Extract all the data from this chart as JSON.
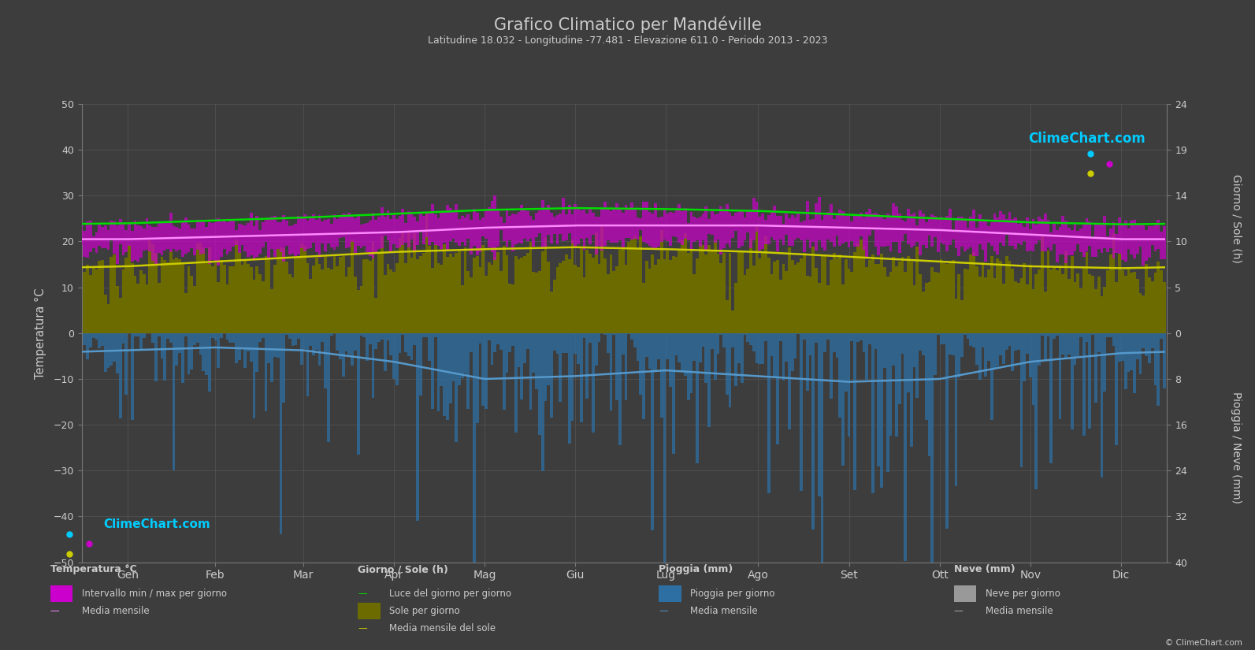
{
  "title": "Grafico Climatico per Mandéville",
  "subtitle": "Latitudine 18.032 - Longitudine -77.481 - Elevazione 611.0 - Periodo 2013 - 2023",
  "background_color": "#3d3d3d",
  "plot_bg_color": "#3d3d3d",
  "grid_color": "#5a5a5a",
  "text_color": "#cccccc",
  "months": [
    "Gen",
    "Feb",
    "Mar",
    "Apr",
    "Mag",
    "Giu",
    "Lug",
    "Ago",
    "Set",
    "Ott",
    "Nov",
    "Dic"
  ],
  "days_in_month": [
    31,
    28,
    31,
    30,
    31,
    30,
    31,
    31,
    30,
    31,
    30,
    31
  ],
  "temp_ylim": [
    -50,
    50
  ],
  "giorno_ylim": [
    0,
    24
  ],
  "pioggia_ylim": [
    0,
    40
  ],
  "temp_mean": [
    20.5,
    21.0,
    21.5,
    22.0,
    23.0,
    23.5,
    23.5,
    23.5,
    23.0,
    22.5,
    21.5,
    20.5
  ],
  "temp_max_mean": [
    23.5,
    24.0,
    25.0,
    26.0,
    26.5,
    27.0,
    26.5,
    26.5,
    26.0,
    25.5,
    24.0,
    23.5
  ],
  "temp_min_mean": [
    17.5,
    17.5,
    18.0,
    19.0,
    19.5,
    20.0,
    20.0,
    20.0,
    19.5,
    19.0,
    18.5,
    17.5
  ],
  "temp_abs_max": [
    28.0,
    29.0,
    30.0,
    31.0,
    32.0,
    32.5,
    32.0,
    32.0,
    31.5,
    30.5,
    29.5,
    28.5
  ],
  "temp_abs_min": [
    13.0,
    13.0,
    13.5,
    14.5,
    15.5,
    16.5,
    16.5,
    16.5,
    15.5,
    14.5,
    13.5,
    13.0
  ],
  "daylight": [
    11.5,
    11.8,
    12.1,
    12.5,
    12.9,
    13.1,
    13.0,
    12.8,
    12.4,
    12.0,
    11.6,
    11.4
  ],
  "sunshine_daily": [
    6.5,
    7.0,
    7.5,
    7.8,
    8.0,
    8.2,
    8.0,
    7.8,
    7.2,
    6.8,
    6.5,
    6.2
  ],
  "sunshine_mean": [
    7.0,
    7.5,
    8.0,
    8.5,
    8.8,
    9.0,
    8.8,
    8.5,
    8.0,
    7.5,
    7.0,
    6.8
  ],
  "rain_mean": [
    3.0,
    2.5,
    3.0,
    5.0,
    8.0,
    7.5,
    6.5,
    7.5,
    8.5,
    8.0,
    5.0,
    3.5
  ],
  "rain_sigma": [
    5.0,
    4.5,
    5.0,
    7.0,
    10.0,
    9.0,
    8.5,
    9.5,
    11.0,
    10.5,
    7.0,
    5.5
  ],
  "snow_mean": [
    0.0,
    0.0,
    0.0,
    0.0,
    0.0,
    0.0,
    0.0,
    0.0,
    0.0,
    0.0,
    0.0,
    0.0
  ],
  "color_temp_bar": "#cc00cc",
  "color_temp_mean": "#ff88ff",
  "color_daylight": "#00dd00",
  "color_sunshine_bar": "#6b6b00",
  "color_sunshine_mean": "#cccc00",
  "color_rain_bar": "#2e6fa3",
  "color_rain_mean": "#5599cc",
  "color_snow_bar": "#999999",
  "color_snow_mean": "#aaaaaa"
}
